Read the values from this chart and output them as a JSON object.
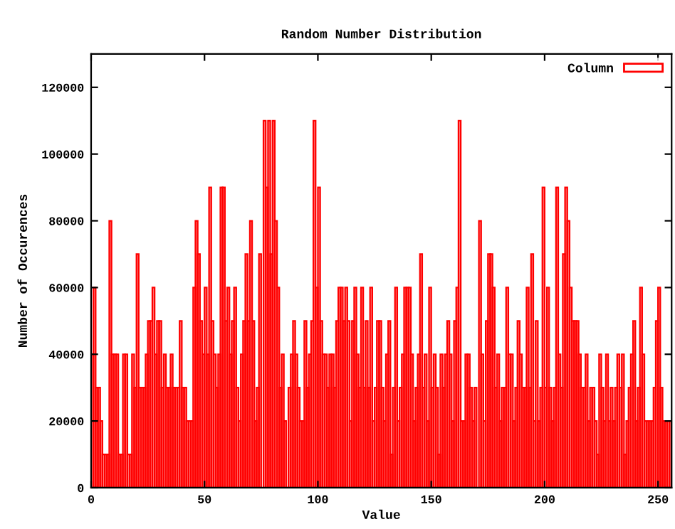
{
  "chart_data": {
    "type": "histogram",
    "title": "Random Number Distribution",
    "xlabel": "Value",
    "ylabel": "Number of Occurences",
    "bins": [
      0,
      1,
      2,
      3,
      4,
      5,
      6,
      7,
      8,
      9,
      10,
      11,
      12,
      13,
      14,
      15,
      16,
      17,
      18,
      19,
      20,
      21,
      22,
      23,
      24,
      25,
      26,
      27,
      28,
      29,
      30,
      31,
      32,
      33,
      34,
      35,
      36,
      37,
      38,
      39,
      40,
      41,
      42,
      43,
      44,
      45,
      46,
      47,
      48,
      49,
      50,
      51,
      52,
      53,
      54,
      55,
      56,
      57,
      58,
      59,
      60,
      61,
      62,
      63,
      64,
      65,
      66,
      67,
      68,
      69,
      70,
      71,
      72,
      73,
      74,
      75,
      76,
      77,
      78,
      79,
      80,
      81,
      82,
      83,
      84,
      85,
      86,
      87,
      88,
      89,
      90,
      91,
      92,
      93,
      94,
      95,
      96,
      97,
      98,
      99,
      100,
      101,
      102,
      103,
      104,
      105,
      106,
      107,
      108,
      109,
      110,
      111,
      112,
      113,
      114,
      115,
      116,
      117,
      118,
      119,
      120,
      121,
      122,
      123,
      124,
      125,
      126,
      127,
      128,
      129,
      130,
      131,
      132,
      133,
      134,
      135,
      136,
      137,
      138,
      139,
      140,
      141,
      142,
      143,
      144,
      145,
      146,
      147,
      148,
      149,
      150,
      151,
      152,
      153,
      154,
      155,
      156,
      157,
      158,
      159,
      160,
      161,
      162,
      163,
      164,
      165,
      166,
      167,
      168,
      169,
      170,
      171,
      172,
      173,
      174,
      175,
      176,
      177,
      178,
      179,
      180,
      181,
      182,
      183,
      184,
      185,
      186,
      187,
      188,
      189,
      190,
      191,
      192,
      193,
      194,
      195,
      196,
      197,
      198,
      199,
      200,
      201,
      202,
      203,
      204,
      205,
      206,
      207,
      208,
      209,
      210,
      211,
      212,
      213,
      214,
      215,
      216,
      217,
      218,
      219,
      220,
      221,
      222,
      223,
      224,
      225,
      226,
      227,
      228,
      229,
      230,
      231,
      232,
      233,
      234,
      235,
      236,
      237,
      238,
      239,
      240,
      241,
      242,
      243,
      244,
      245,
      246,
      247,
      248,
      249,
      250,
      251,
      252,
      253,
      254,
      255,
      256
    ],
    "series": [
      {
        "name": "Column",
        "color": "#ff0000",
        "values": [
          40000,
          60000,
          30000,
          30000,
          20000,
          10000,
          10000,
          10000,
          80000,
          40000,
          40000,
          40000,
          10000,
          10000,
          40000,
          40000,
          10000,
          10000,
          40000,
          30000,
          70000,
          30000,
          30000,
          30000,
          40000,
          50000,
          50000,
          60000,
          40000,
          50000,
          50000,
          30000,
          40000,
          30000,
          30000,
          40000,
          30000,
          30000,
          30000,
          50000,
          30000,
          30000,
          20000,
          20000,
          20000,
          60000,
          80000,
          70000,
          50000,
          40000,
          60000,
          40000,
          90000,
          50000,
          40000,
          30000,
          40000,
          90000,
          90000,
          50000,
          60000,
          40000,
          50000,
          60000,
          30000,
          20000,
          40000,
          50000,
          70000,
          50000,
          80000,
          50000,
          20000,
          30000,
          70000,
          null,
          110000,
          90000,
          110000,
          70000,
          110000,
          80000,
          60000,
          30000,
          40000,
          20000,
          0,
          30000,
          40000,
          50000,
          40000,
          30000,
          20000,
          20000,
          50000,
          30000,
          40000,
          50000,
          110000,
          60000,
          90000,
          50000,
          40000,
          40000,
          30000,
          40000,
          40000,
          30000,
          50000,
          60000,
          60000,
          50000,
          60000,
          50000,
          20000,
          50000,
          60000,
          40000,
          30000,
          60000,
          30000,
          50000,
          30000,
          60000,
          20000,
          30000,
          50000,
          50000,
          30000,
          20000,
          40000,
          50000,
          10000,
          30000,
          60000,
          20000,
          30000,
          40000,
          60000,
          60000,
          60000,
          40000,
          20000,
          30000,
          40000,
          70000,
          30000,
          40000,
          20000,
          60000,
          30000,
          40000,
          30000,
          10000,
          40000,
          30000,
          40000,
          50000,
          40000,
          20000,
          50000,
          60000,
          110000,
          20000,
          20000,
          40000,
          40000,
          30000,
          20000,
          30000,
          null,
          80000,
          40000,
          20000,
          50000,
          70000,
          70000,
          60000,
          30000,
          40000,
          20000,
          30000,
          30000,
          60000,
          40000,
          40000,
          20000,
          30000,
          50000,
          40000,
          30000,
          30000,
          60000,
          30000,
          70000,
          20000,
          50000,
          20000,
          30000,
          90000,
          30000,
          60000,
          30000,
          20000,
          30000,
          90000,
          40000,
          30000,
          70000,
          90000,
          80000,
          60000,
          50000,
          50000,
          50000,
          40000,
          30000,
          30000,
          40000,
          20000,
          30000,
          30000,
          20000,
          10000,
          40000,
          30000,
          20000,
          40000,
          20000,
          30000,
          20000,
          30000,
          40000,
          30000,
          40000,
          10000,
          20000,
          30000,
          40000,
          50000,
          20000,
          30000,
          60000,
          40000,
          20000,
          20000,
          20000,
          20000,
          30000,
          50000,
          60000,
          30000,
          20000,
          20000,
          20000,
          20000
        ]
      }
    ],
    "xlim": [
      0,
      256
    ],
    "xticks": [
      0,
      50,
      100,
      150,
      200,
      250
    ],
    "ylim": [
      0,
      130000
    ],
    "yticks": [
      0,
      20000,
      40000,
      60000,
      80000,
      100000,
      120000
    ],
    "grid": false,
    "legend": "top right"
  }
}
